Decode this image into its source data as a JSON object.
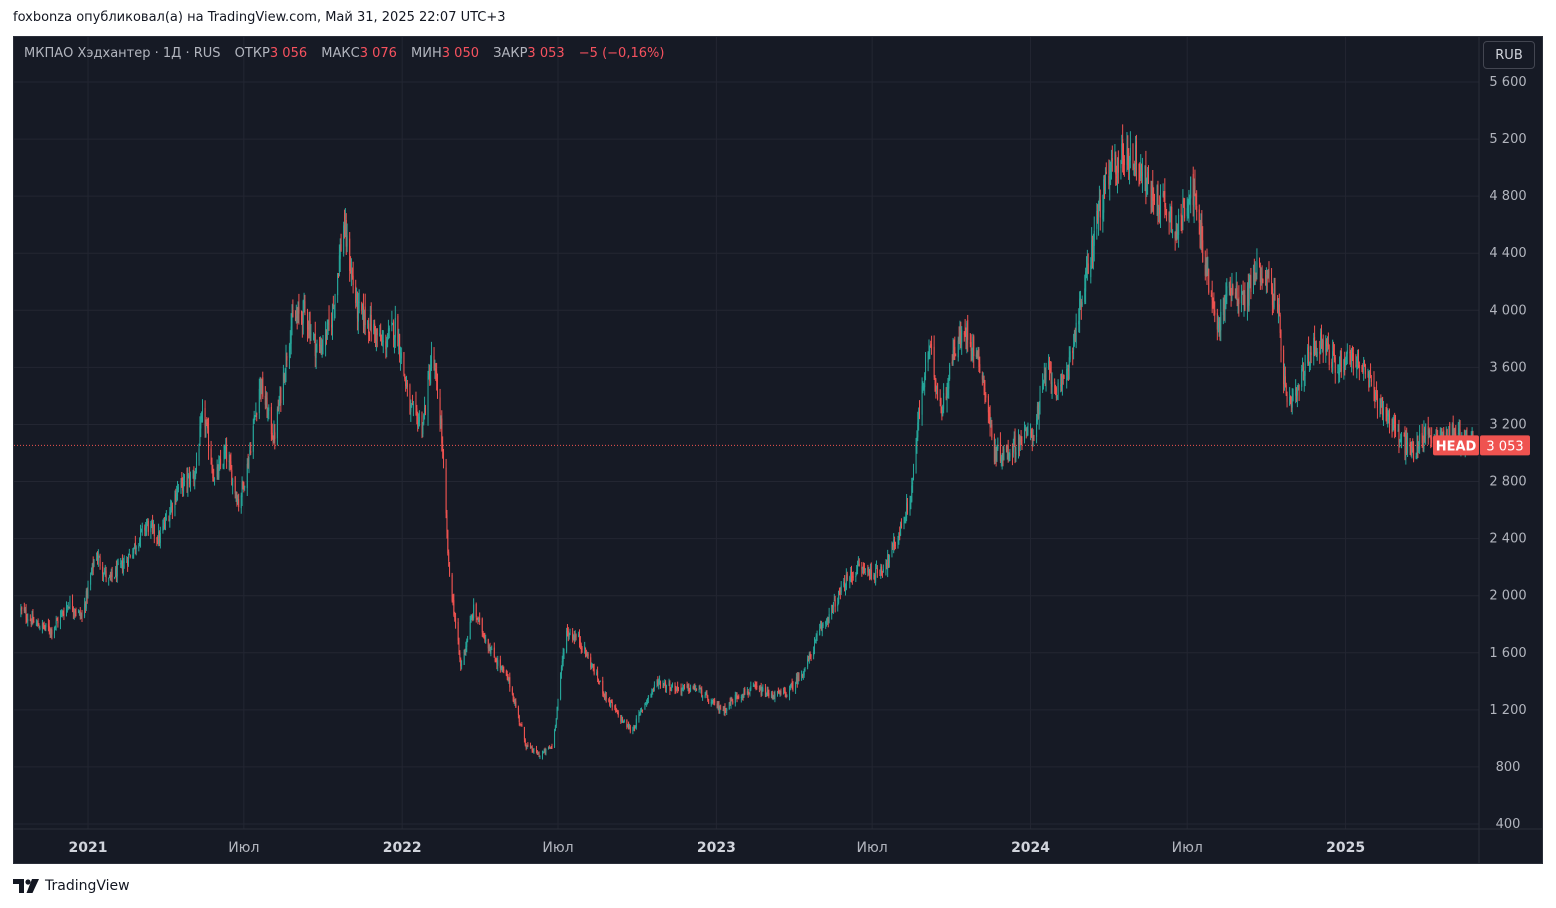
{
  "attribution": "foxbonza опубликовал(а) на TradingView.com, Май 31, 2025 22:07 UTC+3",
  "legend": {
    "symbol": "МКПАО Хэдхантер · 1Д · RUS",
    "open_label": "ОТКР",
    "open_value": "3 056",
    "high_label": "МАКС",
    "high_value": "3 076",
    "low_label": "МИН",
    "low_value": "3 050",
    "close_label": "ЗАКР",
    "close_value": "3 053",
    "change": "−5 (−0,16%)"
  },
  "currency_button": "RUB",
  "price_tag": {
    "ticker": "HEAD",
    "value": "3 053"
  },
  "footer": {
    "brand": "TradingView"
  },
  "colors": {
    "background": "#161a25",
    "up": "#26a69a",
    "down": "#ef5350",
    "grid": "#232632",
    "text": "#b2b5be",
    "price_line": "#ef5350"
  },
  "chart_data": {
    "type": "candlestick",
    "title": "МКПАО Хэдхантер · 1Д · RUS",
    "ylim": [
      400,
      5600
    ],
    "y_ticks": [
      400,
      800,
      1200,
      1600,
      2000,
      2400,
      2800,
      3200,
      3600,
      4000,
      4400,
      4800,
      5200,
      5600
    ],
    "y_tick_labels": [
      "400",
      "800",
      "1 200",
      "1 600",
      "2 000",
      "2 400",
      "2 800",
      "3 200",
      "3 600",
      "4 000",
      "4 400",
      "4 800",
      "5 200",
      "5 600"
    ],
    "x_range": [
      "2020-10-07",
      "2025-06-05"
    ],
    "x_ticks": [
      {
        "date": "2021-01-01",
        "label": "2021",
        "bold": true
      },
      {
        "date": "2021-07-01",
        "label": "Июл",
        "bold": false
      },
      {
        "date": "2022-01-01",
        "label": "2022",
        "bold": true
      },
      {
        "date": "2022-07-01",
        "label": "Июл",
        "bold": false
      },
      {
        "date": "2023-01-01",
        "label": "2023",
        "bold": true
      },
      {
        "date": "2023-07-01",
        "label": "Июл",
        "bold": false
      },
      {
        "date": "2024-01-01",
        "label": "2024",
        "bold": true
      },
      {
        "date": "2024-07-01",
        "label": "Июл",
        "bold": false
      },
      {
        "date": "2025-01-01",
        "label": "2025",
        "bold": true
      }
    ],
    "last_close": 3053,
    "close_path": [
      [
        "2020-10-15",
        1900
      ],
      [
        "2020-11-01",
        1800
      ],
      [
        "2020-11-20",
        1760
      ],
      [
        "2020-12-10",
        1950
      ],
      [
        "2020-12-25",
        1850
      ],
      [
        "2021-01-10",
        2300
      ],
      [
        "2021-01-25",
        2100
      ],
      [
        "2021-02-15",
        2250
      ],
      [
        "2021-03-10",
        2500
      ],
      [
        "2021-03-25",
        2400
      ],
      [
        "2021-04-15",
        2750
      ],
      [
        "2021-05-05",
        2850
      ],
      [
        "2021-05-15",
        3300
      ],
      [
        "2021-05-28",
        2800
      ],
      [
        "2021-06-10",
        3000
      ],
      [
        "2021-06-25",
        2650
      ],
      [
        "2021-07-05",
        2900
      ],
      [
        "2021-07-20",
        3500
      ],
      [
        "2021-08-05",
        3100
      ],
      [
        "2021-08-25",
        3900
      ],
      [
        "2021-09-10",
        4000
      ],
      [
        "2021-09-25",
        3700
      ],
      [
        "2021-10-10",
        3900
      ],
      [
        "2021-10-25",
        4600
      ],
      [
        "2021-11-10",
        4000
      ],
      [
        "2021-11-25",
        3900
      ],
      [
        "2021-12-10",
        3750
      ],
      [
        "2021-12-25",
        3900
      ],
      [
        "2022-01-10",
        3300
      ],
      [
        "2022-01-25",
        3200
      ],
      [
        "2022-02-05",
        3700
      ],
      [
        "2022-02-15",
        3200
      ],
      [
        "2022-02-24",
        2200
      ],
      [
        "2022-03-10",
        1500
      ],
      [
        "2022-03-25",
        1900
      ],
      [
        "2022-04-15",
        1600
      ],
      [
        "2022-05-05",
        1400
      ],
      [
        "2022-05-25",
        950
      ],
      [
        "2022-06-10",
        880
      ],
      [
        "2022-06-25",
        950
      ],
      [
        "2022-07-10",
        1750
      ],
      [
        "2022-07-25",
        1700
      ],
      [
        "2022-08-10",
        1500
      ],
      [
        "2022-08-25",
        1300
      ],
      [
        "2022-09-10",
        1150
      ],
      [
        "2022-09-25",
        1050
      ],
      [
        "2022-10-10",
        1250
      ],
      [
        "2022-10-25",
        1400
      ],
      [
        "2022-11-15",
        1350
      ],
      [
        "2022-12-10",
        1350
      ],
      [
        "2022-12-25",
        1250
      ],
      [
        "2023-01-10",
        1200
      ],
      [
        "2023-01-25",
        1300
      ],
      [
        "2023-02-15",
        1350
      ],
      [
        "2023-03-05",
        1300
      ],
      [
        "2023-03-25",
        1320
      ],
      [
        "2023-04-15",
        1500
      ],
      [
        "2023-05-01",
        1750
      ],
      [
        "2023-05-15",
        1900
      ],
      [
        "2023-06-01",
        2100
      ],
      [
        "2023-06-15",
        2200
      ],
      [
        "2023-07-05",
        2150
      ],
      [
        "2023-07-20",
        2250
      ],
      [
        "2023-08-05",
        2500
      ],
      [
        "2023-08-15",
        2700
      ],
      [
        "2023-08-25",
        3300
      ],
      [
        "2023-09-05",
        3750
      ],
      [
        "2023-09-20",
        3300
      ],
      [
        "2023-10-05",
        3750
      ],
      [
        "2023-10-20",
        3850
      ],
      [
        "2023-11-05",
        3600
      ],
      [
        "2023-11-20",
        3000
      ],
      [
        "2023-12-05",
        3000
      ],
      [
        "2023-12-20",
        3100
      ],
      [
        "2024-01-05",
        3150
      ],
      [
        "2024-01-20",
        3600
      ],
      [
        "2024-02-05",
        3400
      ],
      [
        "2024-02-20",
        3800
      ],
      [
        "2024-03-05",
        4200
      ],
      [
        "2024-03-20",
        4700
      ],
      [
        "2024-04-05",
        5000
      ],
      [
        "2024-04-20",
        5100
      ],
      [
        "2024-05-05",
        5050
      ],
      [
        "2024-05-20",
        4800
      ],
      [
        "2024-06-05",
        4750
      ],
      [
        "2024-06-20",
        4550
      ],
      [
        "2024-07-05",
        4900
      ],
      [
        "2024-07-20",
        4400
      ],
      [
        "2024-08-05",
        3850
      ],
      [
        "2024-08-20",
        4200
      ],
      [
        "2024-09-05",
        4050
      ],
      [
        "2024-09-20",
        4300
      ],
      [
        "2024-10-05",
        4200
      ],
      [
        "2024-10-15",
        3950
      ],
      [
        "2024-10-25",
        3300
      ],
      [
        "2024-11-05",
        3400
      ],
      [
        "2024-11-20",
        3700
      ],
      [
        "2024-12-05",
        3800
      ],
      [
        "2024-12-20",
        3600
      ],
      [
        "2025-01-05",
        3700
      ],
      [
        "2025-01-20",
        3600
      ],
      [
        "2025-02-05",
        3400
      ],
      [
        "2025-02-20",
        3250
      ],
      [
        "2025-03-05",
        3100
      ],
      [
        "2025-03-20",
        3000
      ],
      [
        "2025-04-05",
        3150
      ],
      [
        "2025-04-20",
        3100
      ],
      [
        "2025-05-05",
        3150
      ],
      [
        "2025-05-20",
        3100
      ],
      [
        "2025-05-30",
        3053
      ]
    ]
  }
}
